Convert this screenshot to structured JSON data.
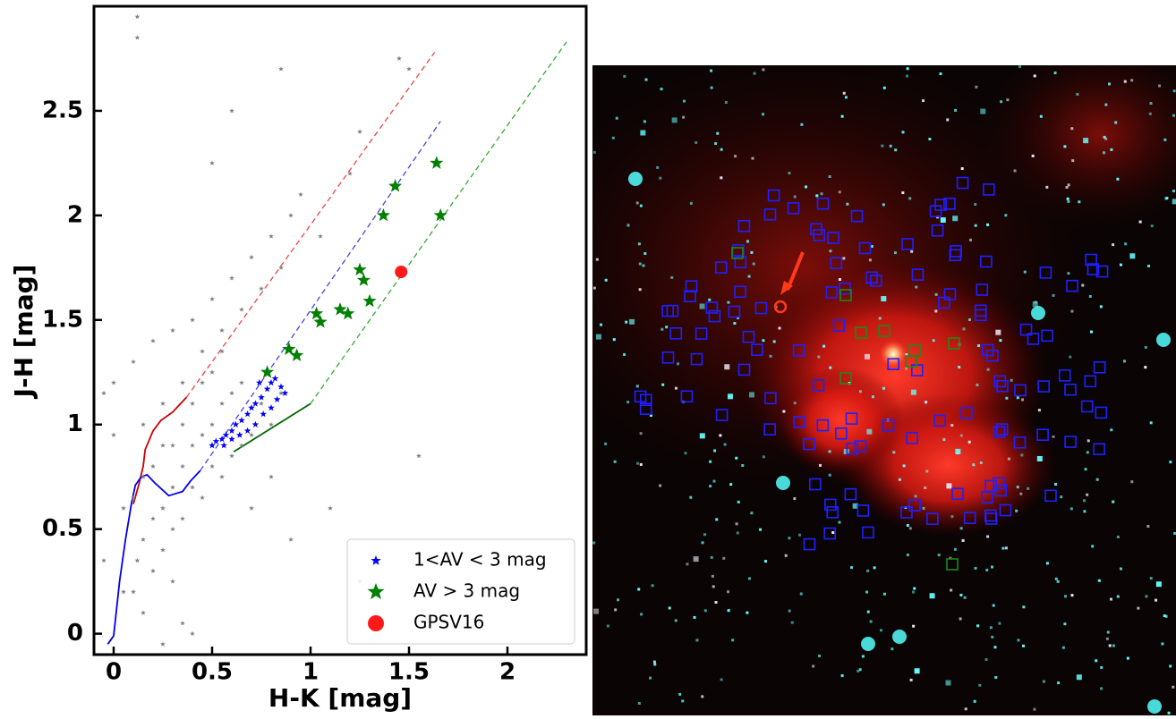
{
  "chart_data": {
    "type": "scatter",
    "x_label": "H-K [mag]",
    "y_label": "J-H [mag]",
    "xlim": [
      -0.1,
      2.4
    ],
    "ylim": [
      -0.1,
      3.0
    ],
    "xticks": [
      0,
      0.5,
      1,
      1.5,
      2
    ],
    "yticks": [
      0,
      0.5,
      1,
      1.5,
      2,
      2.5
    ],
    "legend": "lower right",
    "series": [
      {
        "color": "#808080",
        "marker": "star",
        "size": 3,
        "x": [
          0.1,
          0.12,
          0.15,
          0.2,
          0.25,
          0.3,
          0.35,
          0.4,
          0.45,
          0.5,
          0.55,
          0.6,
          0.65,
          0.3,
          0.35,
          0.4,
          0.45,
          0.5,
          0.55,
          0.25,
          0.2,
          0.15,
          0.1,
          0.05,
          0.0,
          -0.05,
          0.0,
          0.1,
          0.2,
          0.3,
          0.4,
          0.5,
          0.6,
          0.7,
          0.8,
          0.9,
          0.95,
          0.4,
          0.5,
          0.6,
          0.7,
          0.8,
          0.3,
          0.25,
          0.2,
          0.35,
          0.45,
          0.55,
          0.65,
          0.75,
          0.85,
          0.15,
          0.25,
          0.35,
          0.45,
          0.55,
          0.65,
          0.75,
          0.85,
          1.05,
          1.2,
          1.25,
          1.45,
          1.5,
          0.5,
          0.85,
          0.12,
          0.12,
          0.6,
          1.1,
          1.55,
          1.25,
          0.4,
          0.25,
          0.35,
          0.9,
          0.05,
          -0.05,
          0.7,
          0.8,
          0.3,
          0.15
        ],
        "y": [
          0.2,
          0.35,
          0.45,
          0.55,
          0.6,
          0.7,
          0.8,
          0.9,
          0.95,
          1.0,
          1.1,
          1.15,
          1.2,
          0.9,
          1.0,
          1.1,
          1.2,
          1.25,
          1.35,
          0.9,
          0.8,
          0.75,
          0.65,
          0.6,
          0.95,
          1.15,
          1.2,
          1.3,
          1.4,
          1.45,
          1.5,
          1.6,
          1.7,
          1.8,
          1.9,
          2.0,
          2.1,
          0.7,
          0.8,
          0.85,
          0.95,
          1.0,
          0.5,
          0.4,
          0.3,
          0.55,
          0.65,
          0.75,
          0.9,
          1.1,
          1.15,
          1.0,
          1.1,
          1.2,
          1.35,
          1.45,
          1.55,
          1.65,
          1.75,
          1.9,
          2.2,
          2.4,
          2.75,
          2.7,
          2.25,
          2.7,
          2.95,
          2.85,
          2.5,
          0.6,
          0.85,
          0.25,
          0.0,
          -0.05,
          0.05,
          0.45,
          0.2,
          0.35,
          0.6,
          0.75,
          0.25,
          0.1
        ]
      },
      {
        "name": "1<AV < 3 mag",
        "color": "#0000ff",
        "marker": "star",
        "size": 4,
        "x": [
          0.5,
          0.52,
          0.55,
          0.57,
          0.6,
          0.62,
          0.65,
          0.68,
          0.7,
          0.72,
          0.75,
          0.78,
          0.8,
          0.82,
          0.85,
          0.87,
          0.83,
          0.8,
          0.76,
          0.72,
          0.68,
          0.64,
          0.6,
          0.56,
          0.74
        ],
        "y": [
          0.9,
          0.92,
          0.93,
          0.95,
          0.97,
          1.0,
          1.02,
          1.05,
          1.08,
          1.1,
          1.13,
          1.17,
          1.2,
          1.22,
          1.18,
          1.15,
          1.12,
          1.08,
          1.05,
          1.0,
          0.97,
          0.95,
          0.93,
          0.9,
          1.2
        ]
      },
      {
        "name": "AV > 3 mag",
        "color": "#008000",
        "marker": "star",
        "size": 8,
        "x": [
          0.78,
          1.43,
          1.64,
          1.66,
          1.37,
          1.25,
          1.27,
          1.3,
          1.15,
          1.19,
          1.03,
          1.05,
          0.89,
          0.93
        ],
        "y": [
          1.25,
          2.14,
          2.25,
          2.0,
          2.0,
          1.74,
          1.69,
          1.59,
          1.55,
          1.53,
          1.53,
          1.49,
          1.36,
          1.33
        ]
      },
      {
        "name": "GPSV16",
        "color": "#ff1a1a",
        "marker": "circle",
        "size": 7,
        "x": [
          1.46
        ],
        "y": [
          1.73
        ]
      }
    ],
    "lines": [
      {
        "color": "#cc0000",
        "dash": false,
        "x": [
          0.1,
          0.13,
          0.15,
          0.16,
          0.2,
          0.24,
          0.3,
          0.37
        ],
        "y": [
          0.62,
          0.72,
          0.8,
          0.88,
          0.97,
          1.02,
          1.06,
          1.13
        ]
      },
      {
        "color": "#0000ee",
        "dash": false,
        "x": [
          -0.03,
          0.0,
          0.03,
          0.06,
          0.09,
          0.11,
          0.14,
          0.17,
          0.21,
          0.28,
          0.35,
          0.39,
          0.44
        ],
        "y": [
          -0.05,
          -0.01,
          0.25,
          0.45,
          0.62,
          0.71,
          0.75,
          0.76,
          0.72,
          0.66,
          0.68,
          0.73,
          0.78
        ]
      },
      {
        "color": "#006400",
        "dash": false,
        "x": [
          0.61,
          1.0
        ],
        "y": [
          0.87,
          1.1
        ]
      },
      {
        "color": "#ee4444",
        "dash": true,
        "x": [
          0.37,
          1.63
        ],
        "y": [
          1.13,
          2.78
        ]
      },
      {
        "color": "#4444dd",
        "dash": true,
        "x": [
          0.44,
          1.66
        ],
        "y": [
          0.78,
          2.45
        ]
      },
      {
        "color": "#33aa33",
        "dash": true,
        "x": [
          1.0,
          2.3
        ],
        "y": [
          1.1,
          2.83
        ]
      }
    ]
  }
}
